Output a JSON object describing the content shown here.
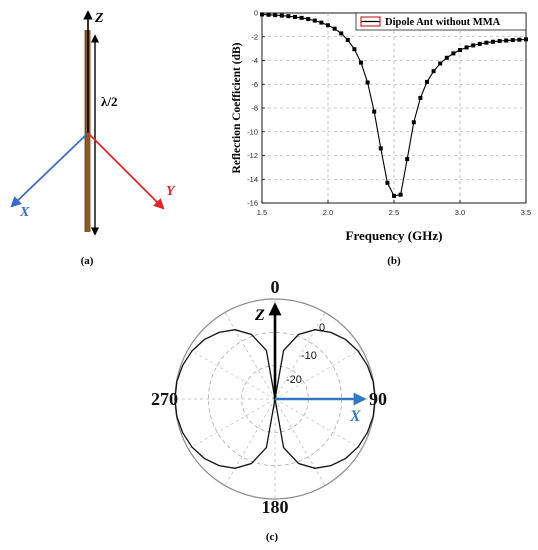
{
  "panel_a": {
    "z_label": "Z",
    "x_label": "X",
    "y_label": "Y",
    "length_label": "λ/2",
    "caption": "(a)",
    "colors": {
      "x_axis": "#3a6bc4",
      "y_axis": "#e0262a",
      "dipole": "#8b5a2b"
    }
  },
  "panel_b": {
    "caption": "(b)",
    "chart_data": {
      "type": "line",
      "title": "",
      "xlabel": "Frequency (GHz)",
      "ylabel": "Reflection Coefficient (dB)",
      "xlim": [
        1.5,
        3.5
      ],
      "ylim": [
        -16,
        0
      ],
      "xticks": [
        "1.5",
        "2.0",
        "2.5",
        "3.0",
        "3.5"
      ],
      "yticks": [
        "0",
        "-2",
        "-4",
        "-6",
        "-8",
        "-10",
        "-12",
        "-14",
        "-16"
      ],
      "grid": true,
      "legend": "top-right",
      "series": [
        {
          "name": "Dipole Ant without MMA",
          "color": "#000000",
          "legend_color": "#cc0000",
          "marker": "square",
          "x": [
            1.5,
            1.55,
            1.6,
            1.65,
            1.7,
            1.75,
            1.8,
            1.85,
            1.9,
            1.95,
            2.0,
            2.05,
            2.1,
            2.15,
            2.2,
            2.25,
            2.3,
            2.35,
            2.4,
            2.45,
            2.5,
            2.55,
            2.6,
            2.65,
            2.7,
            2.75,
            2.8,
            2.85,
            2.9,
            2.95,
            3.0,
            3.05,
            3.1,
            3.15,
            3.2,
            3.25,
            3.3,
            3.35,
            3.4,
            3.45,
            3.5
          ],
          "y": [
            -0.12,
            -0.15,
            -0.18,
            -0.22,
            -0.27,
            -0.33,
            -0.41,
            -0.51,
            -0.64,
            -0.81,
            -1.03,
            -1.32,
            -1.72,
            -2.27,
            -3.05,
            -4.18,
            -5.85,
            -8.3,
            -11.4,
            -14.3,
            -15.4,
            -15.3,
            -12.3,
            -9.2,
            -7.15,
            -5.8,
            -4.9,
            -4.25,
            -3.77,
            -3.4,
            -3.12,
            -2.9,
            -2.73,
            -2.6,
            -2.5,
            -2.42,
            -2.36,
            -2.32,
            -2.28,
            -2.25,
            -2.22
          ]
        }
      ]
    }
  },
  "panel_c": {
    "caption": "(c)",
    "angle_labels": {
      "top": "0",
      "right": "90",
      "bottom": "180",
      "left": "270"
    },
    "radial_labels": [
      "0",
      "-10",
      "-20"
    ],
    "z_label": "Z",
    "x_label": "X",
    "colors": {
      "x_axis": "#2e79c7",
      "pattern": "#111111"
    },
    "chart_data": {
      "type": "polar",
      "title": "",
      "r_range_db": [
        -30,
        0
      ],
      "r_ticks_db": [
        0,
        -10,
        -20
      ],
      "series": [
        {
          "name": "",
          "theta_deg": [
            0,
            10,
            20,
            30,
            40,
            50,
            60,
            70,
            80,
            90,
            100,
            110,
            120,
            130,
            140,
            150,
            160,
            170,
            180,
            190,
            200,
            210,
            220,
            230,
            240,
            250,
            260,
            270,
            280,
            290,
            300,
            310,
            320,
            330,
            340,
            350,
            360
          ],
          "r_db": [
            -30,
            -15.2,
            -9.4,
            -6.0,
            -3.9,
            -2.3,
            -1.2,
            -0.5,
            -0.1,
            0,
            -0.1,
            -0.5,
            -1.2,
            -2.3,
            -3.9,
            -6.0,
            -9.4,
            -15.2,
            -30,
            -15.2,
            -9.4,
            -6.0,
            -3.9,
            -2.3,
            -1.2,
            -0.5,
            -0.1,
            0,
            -0.1,
            -0.5,
            -1.2,
            -2.3,
            -3.9,
            -6.0,
            -9.4,
            -15.2,
            -30
          ]
        }
      ]
    }
  }
}
